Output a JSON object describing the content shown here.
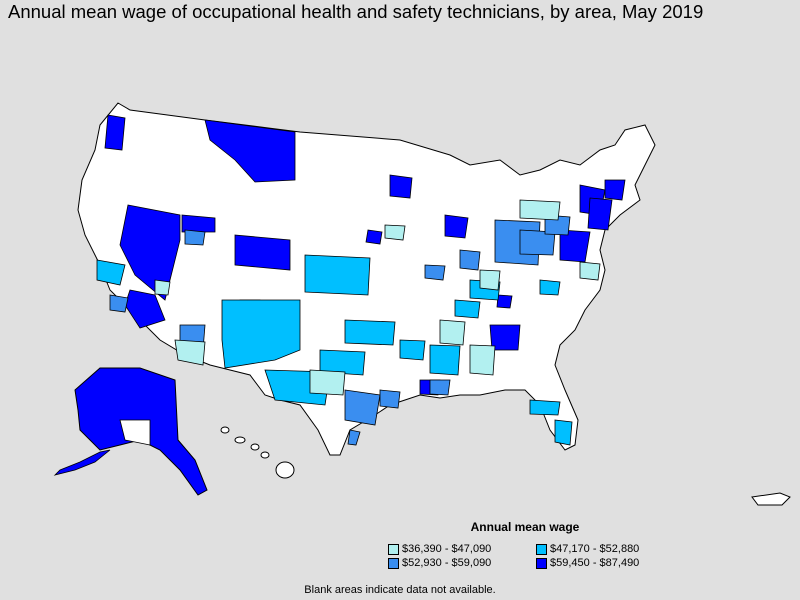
{
  "title": "Annual mean wage of occupational health and safety technicians, by area, May 2019",
  "legend": {
    "title": "Annual mean wage",
    "items": [
      {
        "label": "$36,390 - $47,090",
        "color": "#b2f0f0"
      },
      {
        "label": "$47,170 - $52,880",
        "color": "#00bfff"
      },
      {
        "label": "$52,930 - $59,090",
        "color": "#3a8ef0"
      },
      {
        "label": "$59,450 - $87,490",
        "color": "#0000ff"
      }
    ]
  },
  "footnote": "Blank areas indicate data not available.",
  "colors": {
    "background": "#e0e0e0",
    "no_data": "#ffffff",
    "border": "#000000"
  }
}
